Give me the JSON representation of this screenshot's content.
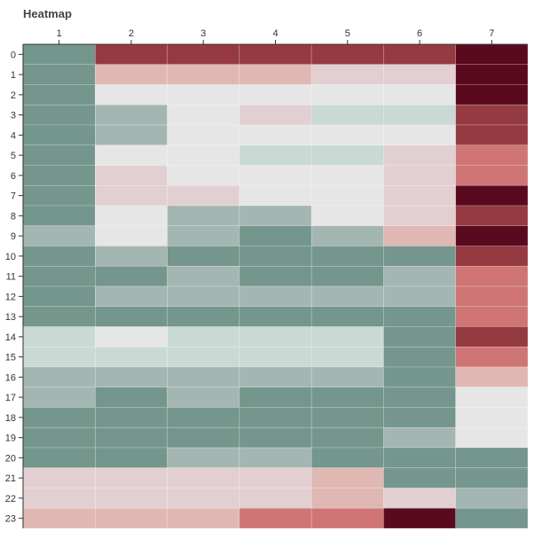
{
  "chart_data": {
    "type": "heatmap",
    "title": "Heatmap",
    "x_labels": [
      "1",
      "2",
      "3",
      "4",
      "5",
      "6",
      "7"
    ],
    "y_labels": [
      "0",
      "1",
      "2",
      "3",
      "4",
      "5",
      "6",
      "7",
      "8",
      "9",
      "10",
      "11",
      "12",
      "13",
      "14",
      "15",
      "16",
      "17",
      "18",
      "19",
      "20",
      "21",
      "22",
      "23"
    ],
    "value_range": [
      0,
      9
    ],
    "color_scale": [
      "#74968c",
      "#a4b6b2",
      "#c9d9d4",
      "#e6e6e6",
      "#e2cfd1",
      "#e0b8b3",
      "#cf7575",
      "#963a42",
      "#5a0a1e"
    ],
    "values": [
      [
        0,
        7,
        7,
        7,
        7,
        7,
        8
      ],
      [
        0,
        5,
        5,
        5,
        4,
        4,
        8
      ],
      [
        0,
        3,
        3,
        3,
        3,
        3,
        8
      ],
      [
        0,
        1,
        3,
        4,
        2,
        2,
        7
      ],
      [
        0,
        1,
        3,
        3,
        3,
        3,
        7
      ],
      [
        0,
        3,
        3,
        2,
        2,
        4,
        6
      ],
      [
        0,
        4,
        3,
        3,
        3,
        4,
        6
      ],
      [
        0,
        4,
        4,
        3,
        3,
        4,
        8
      ],
      [
        0,
        3,
        1,
        1,
        3,
        4,
        7
      ],
      [
        1,
        3,
        1,
        0,
        1,
        5,
        8
      ],
      [
        0,
        1,
        0,
        0,
        0,
        0,
        7
      ],
      [
        0,
        0,
        1,
        0,
        0,
        1,
        6
      ],
      [
        0,
        1,
        1,
        1,
        1,
        1,
        6
      ],
      [
        0,
        0,
        0,
        0,
        0,
        0,
        6
      ],
      [
        2,
        3,
        2,
        2,
        2,
        0,
        7
      ],
      [
        2,
        2,
        2,
        2,
        2,
        0,
        6
      ],
      [
        1,
        1,
        1,
        1,
        1,
        0,
        5
      ],
      [
        1,
        0,
        1,
        0,
        0,
        0,
        3
      ],
      [
        0,
        0,
        0,
        0,
        0,
        0,
        3
      ],
      [
        0,
        0,
        0,
        0,
        0,
        1,
        3
      ],
      [
        0,
        0,
        1,
        1,
        0,
        0,
        0
      ],
      [
        4,
        4,
        4,
        4,
        5,
        0,
        0
      ],
      [
        4,
        4,
        4,
        4,
        5,
        4,
        1
      ],
      [
        5,
        5,
        5,
        6,
        6,
        8,
        0
      ]
    ]
  }
}
